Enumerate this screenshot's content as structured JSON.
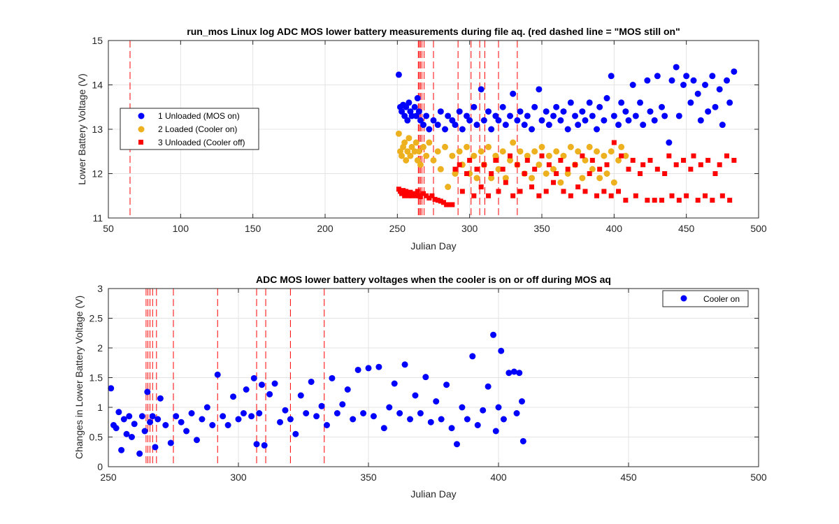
{
  "chart_data": [
    {
      "type": "scatter",
      "title": "run_mos Linux log ADC MOS lower battery measurements during file aq. (red dashed line = \"MOS still on\"",
      "xlabel": "Julian Day",
      "ylabel": "Lower Battery Voltage (V)",
      "xlim": [
        50,
        500
      ],
      "ylim": [
        11,
        15
      ],
      "xticks": [
        "50",
        "100",
        "150",
        "200",
        "250",
        "300",
        "350",
        "400",
        "450",
        "500"
      ],
      "yticks": [
        "11",
        "12",
        "13",
        "14",
        "15"
      ],
      "grid": true,
      "legend_position": "left",
      "vlines": [
        65,
        264.5,
        265.2,
        266,
        267,
        268.5,
        275,
        292,
        301,
        307,
        310.5,
        320,
        333
      ],
      "series": [
        {
          "name": "1 Unloaded (MOS on)",
          "color": "#0000ff",
          "marker": "circle",
          "x": [
            251,
            252,
            253,
            254,
            255,
            256,
            257,
            258,
            259,
            260,
            262,
            263,
            264,
            265,
            266,
            268,
            270,
            272,
            275,
            278,
            280,
            283,
            285,
            288,
            290,
            293,
            295,
            298,
            300,
            303,
            305,
            308,
            310,
            313,
            315,
            318,
            320,
            323,
            325,
            328,
            330,
            333,
            335,
            338,
            340,
            343,
            345,
            348,
            350,
            353,
            355,
            358,
            360,
            363,
            365,
            368,
            370,
            373,
            375,
            378,
            380,
            383,
            385,
            388,
            390,
            393,
            395,
            398,
            400,
            403,
            405,
            408,
            410,
            413,
            415,
            418,
            420,
            423,
            425,
            428,
            430,
            433,
            435,
            438,
            440,
            443,
            445,
            448,
            450,
            453,
            455,
            458,
            460,
            463,
            465,
            468,
            470,
            473,
            475,
            478,
            480,
            483
          ],
          "y": [
            14.23,
            13.5,
            13.4,
            13.55,
            13.3,
            13.5,
            13.2,
            13.6,
            13.4,
            13.3,
            13.5,
            13.3,
            13.7,
            13.4,
            13.2,
            13.1,
            13.3,
            13.0,
            13.2,
            13.1,
            13.4,
            13.0,
            13.3,
            13.2,
            13.1,
            13.4,
            13.0,
            13.3,
            13.2,
            13.5,
            13.1,
            13.9,
            13.2,
            13.4,
            13.0,
            13.3,
            13.2,
            13.5,
            13.1,
            13.3,
            13.8,
            13.2,
            13.4,
            13.1,
            13.3,
            13.0,
            13.5,
            13.9,
            13.2,
            13.4,
            13.1,
            13.3,
            13.5,
            13.2,
            13.4,
            13.0,
            13.6,
            13.3,
            13.1,
            13.4,
            13.2,
            13.6,
            13.3,
            13.0,
            13.5,
            13.2,
            13.7,
            14.2,
            13.3,
            13.1,
            13.6,
            13.4,
            13.2,
            14.0,
            13.3,
            13.6,
            13.1,
            14.1,
            13.4,
            13.2,
            14.2,
            13.5,
            13.3,
            12.7,
            14.1,
            14.4,
            13.3,
            14.0,
            14.2,
            13.6,
            14.1,
            13.8,
            13.2,
            14.0,
            13.4,
            14.2,
            13.5,
            13.9,
            13.1,
            14.1,
            13.6,
            14.3
          ]
        },
        {
          "name": "2 Loaded (Cooler on)",
          "color": "#edb120",
          "marker": "circle",
          "x": [
            251,
            252,
            253,
            254,
            255,
            256,
            257,
            258,
            259,
            260,
            262,
            263,
            264,
            265,
            266,
            268,
            270,
            272,
            275,
            278,
            280,
            283,
            285,
            288,
            290,
            293,
            295,
            298,
            300,
            303,
            305,
            308,
            310,
            313,
            315,
            318,
            320,
            323,
            325,
            328,
            330,
            333,
            335,
            338,
            340,
            343,
            345,
            348,
            350,
            353,
            355,
            358,
            360,
            363,
            365,
            368,
            370,
            373,
            375,
            378,
            380,
            383,
            385,
            388,
            390,
            393,
            395,
            398,
            400,
            403,
            405,
            408
          ],
          "y": [
            12.9,
            12.5,
            12.4,
            12.6,
            12.7,
            12.3,
            12.5,
            12.8,
            12.4,
            12.6,
            12.5,
            12.7,
            12.3,
            12.5,
            12.2,
            12.6,
            12.4,
            12.7,
            12.3,
            12.5,
            12.1,
            12.6,
            11.7,
            12.4,
            12.0,
            12.5,
            12.2,
            12.6,
            12.0,
            12.4,
            11.9,
            12.5,
            12.2,
            12.6,
            11.9,
            12.4,
            12.1,
            12.5,
            11.9,
            12.3,
            12.7,
            12.2,
            12.5,
            12.0,
            12.4,
            11.9,
            12.5,
            12.2,
            12.6,
            12.0,
            12.4,
            12.1,
            12.5,
            11.8,
            12.4,
            12.0,
            12.6,
            12.2,
            12.5,
            11.9,
            12.3,
            12.6,
            12.1,
            12.5,
            11.9,
            12.4,
            12.0,
            12.5,
            11.8,
            12.3,
            12.6,
            12.4
          ]
        },
        {
          "name": "3 Unloaded (Cooler off)",
          "color": "#ff0000",
          "marker": "square",
          "x": [
            251,
            252,
            253,
            254,
            255,
            256,
            257,
            258,
            259,
            260,
            262,
            263,
            264,
            265,
            266,
            268,
            270,
            272,
            274,
            276,
            278,
            280,
            282,
            284,
            286,
            288,
            290,
            293,
            295,
            298,
            300,
            303,
            305,
            308,
            310,
            313,
            315,
            318,
            320,
            323,
            325,
            328,
            330,
            333,
            335,
            338,
            340,
            343,
            345,
            348,
            350,
            353,
            355,
            358,
            360,
            363,
            365,
            368,
            370,
            373,
            375,
            378,
            380,
            383,
            385,
            388,
            390,
            393,
            395,
            398,
            400,
            403,
            405,
            408,
            410,
            413,
            415,
            418,
            420,
            423,
            425,
            428,
            430,
            433,
            435,
            438,
            440,
            443,
            445,
            448,
            450,
            453,
            455,
            458,
            460,
            463,
            465,
            468,
            470,
            473,
            475,
            478,
            480,
            483
          ],
          "y": [
            11.65,
            11.6,
            11.55,
            11.62,
            11.5,
            11.6,
            11.55,
            11.5,
            11.58,
            11.5,
            11.55,
            11.5,
            11.6,
            11.5,
            11.48,
            11.55,
            11.5,
            11.45,
            11.5,
            11.42,
            11.4,
            11.38,
            11.35,
            11.3,
            11.3,
            11.3,
            12.1,
            12.2,
            11.6,
            12.0,
            12.3,
            11.5,
            12.1,
            11.7,
            12.2,
            11.5,
            12.0,
            12.3,
            11.6,
            12.1,
            11.8,
            12.4,
            11.5,
            12.2,
            11.6,
            12.0,
            12.3,
            11.7,
            12.1,
            11.5,
            12.4,
            11.6,
            12.2,
            11.8,
            12.0,
            12.3,
            11.6,
            12.1,
            11.5,
            12.2,
            11.7,
            12.4,
            11.6,
            12.0,
            12.3,
            11.5,
            12.1,
            11.6,
            12.2,
            11.5,
            12.7,
            11.6,
            12.4,
            11.4,
            12.1,
            12.3,
            11.5,
            12.0,
            12.2,
            11.4,
            12.3,
            11.4,
            12.1,
            11.4,
            12.0,
            12.4,
            11.5,
            12.2,
            11.4,
            12.3,
            11.5,
            12.1,
            12.4,
            11.4,
            12.2,
            11.5,
            12.3,
            11.4,
            12.0,
            12.2,
            11.5,
            12.4,
            11.4,
            12.3
          ]
        }
      ]
    },
    {
      "type": "scatter",
      "title": "ADC MOS lower battery voltages when the cooler is on or off during MOS aq",
      "xlabel": "Julian Day",
      "ylabel": "Changes in Lower Battery Voltage (V)",
      "xlim": [
        250,
        500
      ],
      "ylim": [
        0,
        3
      ],
      "xticks": [
        "250",
        "300",
        "350",
        "400",
        "450",
        "500"
      ],
      "yticks": [
        "0",
        "0.5",
        "1",
        "1.5",
        "2",
        "2.5",
        "3"
      ],
      "grid": true,
      "legend_position": "top-right",
      "vlines": [
        264.5,
        265.2,
        266,
        267,
        268.5,
        275,
        292,
        307,
        310.5,
        320,
        333
      ],
      "series": [
        {
          "name": "Cooler on",
          "color": "#0000ff",
          "marker": "circle",
          "x": [
            251,
            252,
            253,
            254,
            255,
            256,
            257,
            258,
            259,
            260,
            262,
            263,
            264,
            265,
            266,
            267,
            268,
            269,
            270,
            272,
            274,
            276,
            278,
            280,
            282,
            284,
            286,
            288,
            290,
            292,
            294,
            296,
            298,
            300,
            302,
            303,
            305,
            306,
            307,
            308,
            309,
            310,
            312,
            314,
            316,
            318,
            320,
            322,
            324,
            326,
            328,
            330,
            332,
            334,
            336,
            338,
            340,
            342,
            344,
            346,
            348,
            350,
            352,
            354,
            356,
            358,
            360,
            362,
            364,
            366,
            368,
            370,
            372,
            374,
            376,
            378,
            380,
            382,
            384,
            386,
            388,
            390,
            392,
            394,
            396,
            398,
            399,
            400,
            401,
            402,
            404,
            406,
            407,
            408,
            409,
            409.5
          ],
          "y": [
            1.32,
            0.7,
            0.65,
            0.92,
            0.28,
            0.8,
            0.55,
            0.85,
            0.5,
            0.72,
            0.22,
            0.85,
            0.6,
            1.26,
            0.75,
            0.85,
            0.33,
            0.8,
            1.15,
            0.7,
            0.4,
            0.85,
            0.75,
            0.6,
            0.9,
            0.45,
            0.8,
            1.0,
            0.7,
            1.55,
            0.85,
            0.7,
            1.18,
            0.8,
            0.9,
            1.3,
            0.85,
            1.49,
            0.38,
            0.9,
            1.38,
            0.36,
            1.22,
            1.4,
            0.75,
            0.95,
            0.8,
            0.55,
            1.2,
            0.9,
            1.43,
            0.85,
            1.02,
            0.7,
            1.49,
            0.9,
            1.05,
            1.3,
            0.8,
            1.63,
            0.9,
            1.66,
            0.85,
            1.68,
            0.65,
            1.0,
            1.4,
            0.9,
            1.72,
            0.8,
            1.2,
            0.9,
            1.51,
            0.75,
            1.1,
            0.8,
            1.38,
            0.65,
            0.38,
            1.0,
            0.8,
            1.86,
            0.7,
            0.95,
            1.35,
            2.22,
            0.6,
            1.0,
            1.95,
            0.8,
            1.58,
            1.6,
            0.9,
            1.58,
            1.1,
            0.43
          ]
        }
      ]
    }
  ]
}
